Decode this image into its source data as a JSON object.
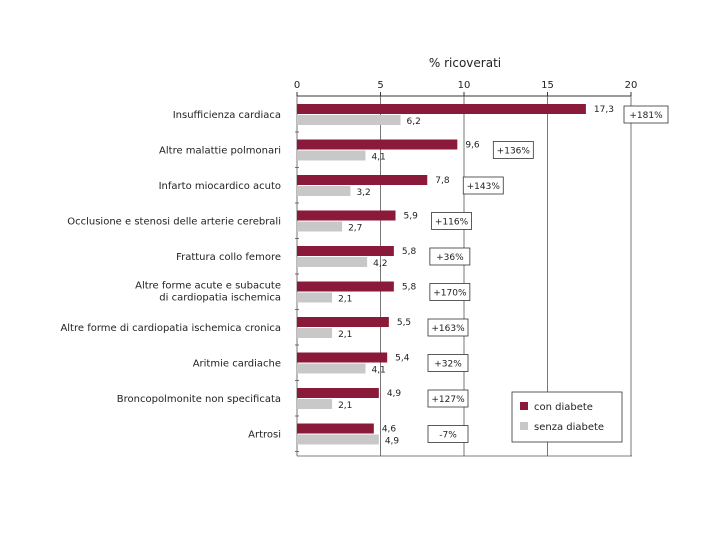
{
  "chart_data": {
    "type": "bar",
    "orientation": "horizontal",
    "title": "% ricoverati",
    "xlim": [
      0,
      20
    ],
    "xticks": [
      "0",
      "5",
      "10",
      "15",
      "20"
    ],
    "categories": [
      [
        "Insufficienza cardiaca"
      ],
      [
        "Altre malattie polmonari"
      ],
      [
        "Infarto miocardico acuto"
      ],
      [
        "Occlusione e stenosi delle arterie cerebrali"
      ],
      [
        "Frattura collo femore"
      ],
      [
        "Altre forme acute e subacute",
        "di cardiopatia ischemica"
      ],
      [
        "Altre forme di cardiopatia ischemica cronica"
      ],
      [
        "Aritmie cardiache"
      ],
      [
        "Broncopolmonite non specificata"
      ],
      [
        "Artrosi"
      ]
    ],
    "series": [
      {
        "name": "con diabete",
        "color": "#8b1a3a",
        "values": [
          17.3,
          9.6,
          7.8,
          5.9,
          5.8,
          5.8,
          5.5,
          5.4,
          4.9,
          4.6
        ],
        "labels": [
          "17,3",
          "9,6",
          "7,8",
          "5,9",
          "5,8",
          "5,8",
          "5,5",
          "5,4",
          "4,9",
          "4,6"
        ]
      },
      {
        "name": "senza diabete",
        "color": "#c8c8c8",
        "values": [
          6.2,
          4.1,
          3.2,
          2.7,
          4.2,
          2.1,
          2.1,
          4.1,
          2.1,
          4.9
        ],
        "labels": [
          "6,2",
          "4,1",
          "3,2",
          "2,7",
          "4,2",
          "2,1",
          "2,1",
          "4,1",
          "2,1",
          "4,9"
        ]
      }
    ],
    "annotations": [
      "+181%",
      "+136%",
      "+143%",
      "+116%",
      "+36%",
      "+170%",
      "+163%",
      "+32%",
      "+127%",
      "-7%"
    ],
    "legend": {
      "position": "bottom-right",
      "entries": [
        "con diabete",
        "senza diabete"
      ]
    },
    "grid": "vertical"
  }
}
